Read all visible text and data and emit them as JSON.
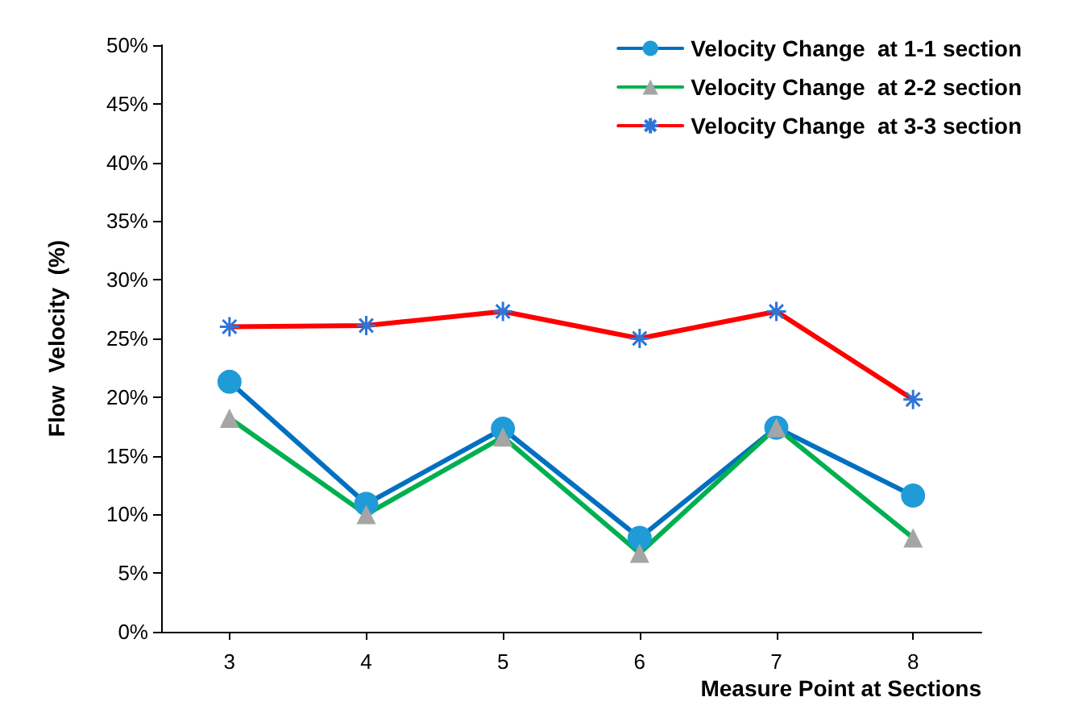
{
  "chart_data": {
    "type": "line",
    "xlabel": "Measure Point at Sections",
    "ylabel": "Flow  Velocity  (%)",
    "categories": [
      "3",
      "4",
      "5",
      "6",
      "7",
      "8"
    ],
    "ylim": [
      0,
      50
    ],
    "yticks": [
      {
        "value": 0,
        "label": "0%"
      },
      {
        "value": 5,
        "label": "5%"
      },
      {
        "value": 10,
        "label": "10%"
      },
      {
        "value": 15,
        "label": "15%"
      },
      {
        "value": 20,
        "label": "20%"
      },
      {
        "value": 25,
        "label": "25%"
      },
      {
        "value": 30,
        "label": "30%"
      },
      {
        "value": 35,
        "label": "35%"
      },
      {
        "value": 40,
        "label": "40%"
      },
      {
        "value": 45,
        "label": "45%"
      },
      {
        "value": 50,
        "label": "50%"
      }
    ],
    "grid": false,
    "legend": "top right",
    "series": [
      {
        "name": "Velocity Change  at 1-1 section",
        "color": "#0070c0",
        "marker": "circle",
        "values": [
          21.3,
          10.9,
          17.3,
          8,
          17.4,
          11.6
        ]
      },
      {
        "name": "Velocity Change  at 2-2 section",
        "color": "#00b050",
        "marker": "triangle",
        "values": [
          18.2,
          10,
          16.6,
          6.7,
          17.4,
          8
        ]
      },
      {
        "name": "Velocity Change  at 3-3 section",
        "color": "#ff0000",
        "marker": "cross",
        "values": [
          26,
          26.1,
          27.3,
          25,
          27.3,
          19.8
        ]
      }
    ]
  }
}
